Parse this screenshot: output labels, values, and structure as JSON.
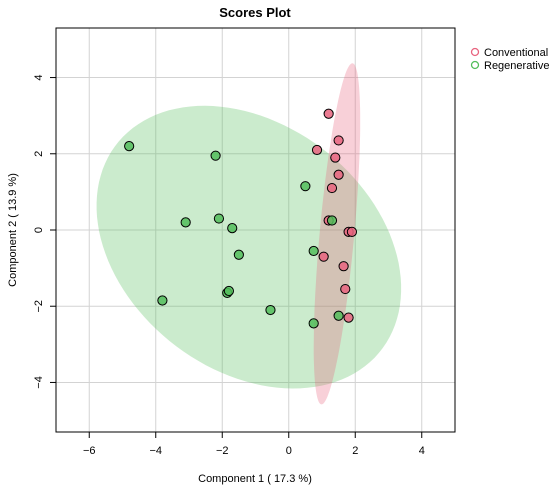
{
  "chart_data": {
    "type": "scatter",
    "title": "Scores Plot",
    "xlabel": "Component 1 ( 17.3 %)",
    "ylabel": "Component 2 ( 13.9 %)",
    "xlim": [
      -7,
      5
    ],
    "ylim": [
      -5.3,
      5.3
    ],
    "xticks": [
      -6,
      -4,
      -2,
      0,
      2,
      4
    ],
    "yticks": [
      -4,
      -2,
      0,
      2,
      4
    ],
    "grid": true,
    "legend_position": "top-right",
    "series": [
      {
        "name": "Conventional",
        "color": "#e8647f",
        "ellipse": {
          "center": [
            1.45,
            -0.1
          ],
          "semi_major": 4.5,
          "semi_minor": 0.52,
          "angle_deg": 84
        },
        "points": [
          [
            1.2,
            3.05
          ],
          [
            1.5,
            2.35
          ],
          [
            0.85,
            2.1
          ],
          [
            1.4,
            1.9
          ],
          [
            1.5,
            1.45
          ],
          [
            1.3,
            1.1
          ],
          [
            1.2,
            0.25
          ],
          [
            1.8,
            -0.05
          ],
          [
            1.9,
            -0.05
          ],
          [
            1.05,
            -0.7
          ],
          [
            1.65,
            -0.95
          ],
          [
            1.7,
            -1.55
          ],
          [
            1.8,
            -2.3
          ]
        ]
      },
      {
        "name": "Regenerative",
        "color": "#52bd5a",
        "ellipse": {
          "center": [
            -1.2,
            -0.45
          ],
          "semi_major": 4.85,
          "semi_minor": 3.35,
          "angle_deg": -27
        },
        "points": [
          [
            -4.8,
            2.2
          ],
          [
            -2.2,
            1.95
          ],
          [
            0.5,
            1.15
          ],
          [
            -3.1,
            0.2
          ],
          [
            -2.1,
            0.3
          ],
          [
            -1.7,
            0.05
          ],
          [
            1.3,
            0.25
          ],
          [
            -1.5,
            -0.65
          ],
          [
            0.75,
            -0.55
          ],
          [
            -3.8,
            -1.85
          ],
          [
            -1.85,
            -1.65
          ],
          [
            -1.8,
            -1.6
          ],
          [
            -0.55,
            -2.1
          ],
          [
            0.75,
            -2.45
          ],
          [
            1.5,
            -2.25
          ]
        ]
      }
    ]
  }
}
